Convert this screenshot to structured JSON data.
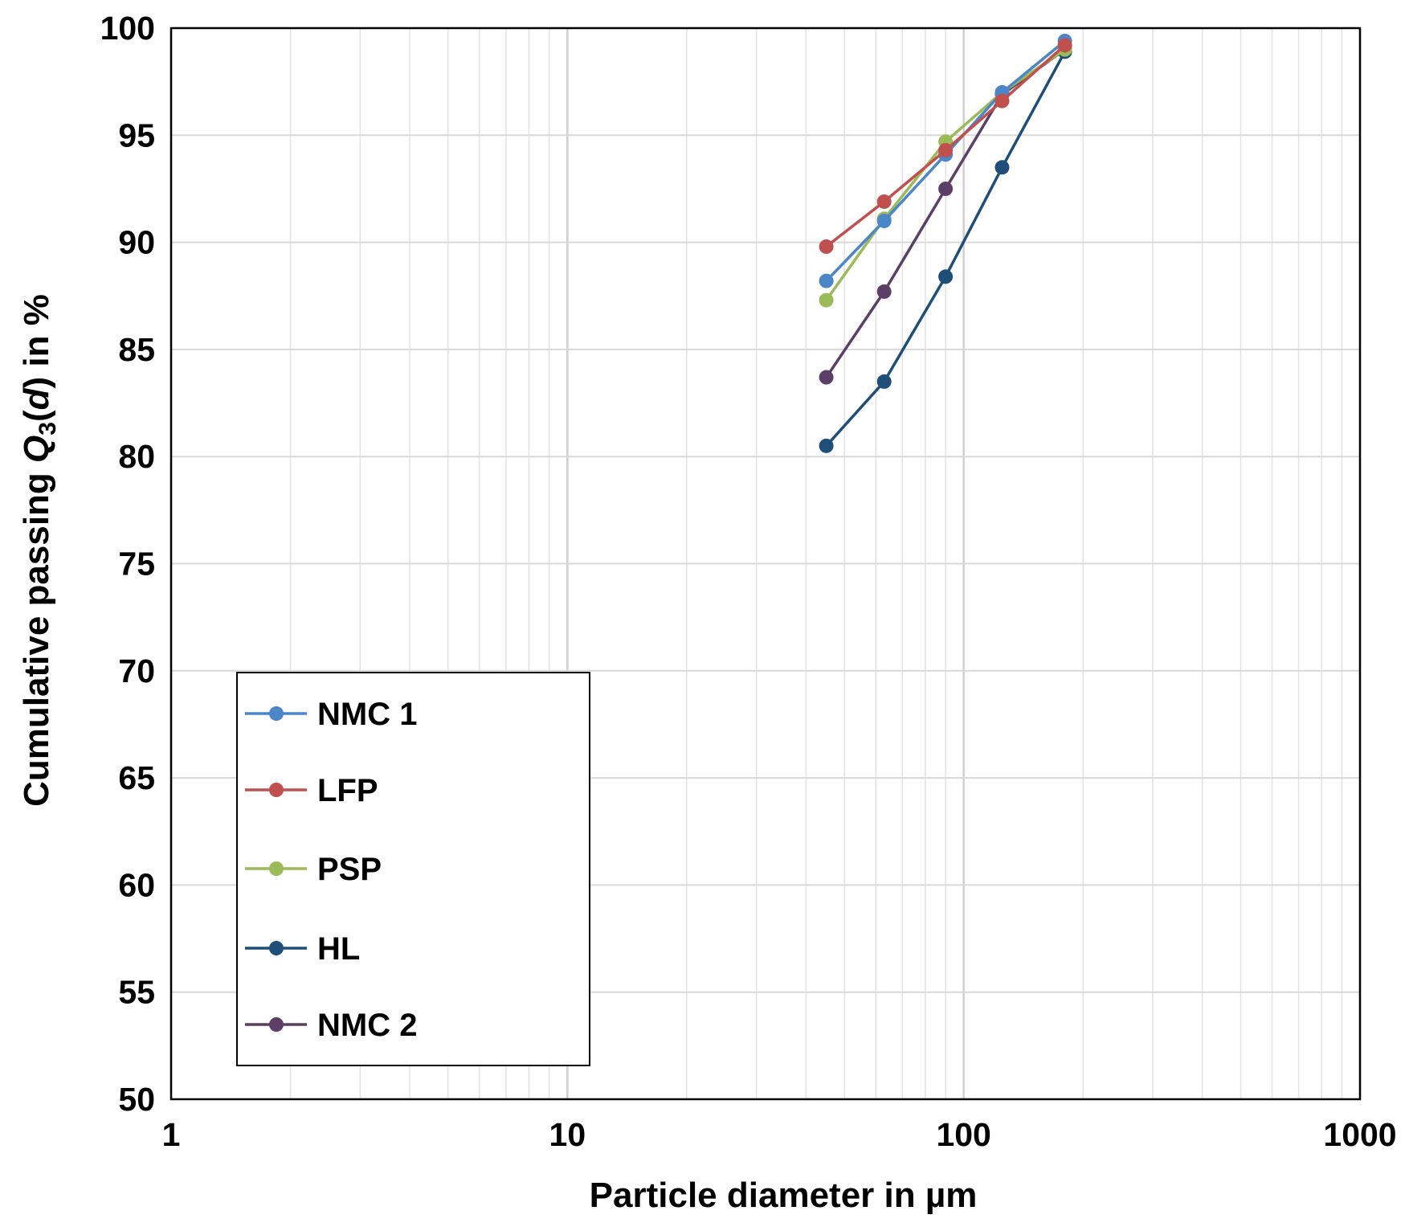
{
  "chart_data": {
    "type": "line",
    "xscale": "log",
    "xlabel": "Particle diameter in µm",
    "ylabel": {
      "prefix": "Cumulative passing ",
      "symbol": "Q",
      "subscript": "3",
      "open": "(",
      "var": "d",
      "close": ")",
      "suffix": " in %"
    },
    "xlim": [
      1,
      1000
    ],
    "ylim": [
      50,
      100
    ],
    "xticks": [
      1,
      10,
      100,
      1000
    ],
    "xtick_labels": [
      "1",
      "10",
      "100",
      "1000"
    ],
    "yticks": [
      50,
      55,
      60,
      65,
      70,
      75,
      80,
      85,
      90,
      95,
      100
    ],
    "ytick_labels": [
      "50",
      "55",
      "60",
      "65",
      "70",
      "75",
      "80",
      "85",
      "90",
      "95",
      "100"
    ],
    "grid": true,
    "legend_position": "lower-left",
    "x": [
      45,
      63,
      90,
      125,
      180
    ],
    "series": [
      {
        "name": "NMC 1",
        "color": "#4a86c8",
        "values": [
          88.2,
          91.0,
          94.1,
          97.0,
          99.4
        ]
      },
      {
        "name": "LFP",
        "color": "#c0504d",
        "values": [
          89.8,
          91.9,
          94.3,
          96.6,
          99.2
        ]
      },
      {
        "name": "PSP",
        "color": "#9bbb59",
        "values": [
          87.3,
          91.1,
          94.7,
          97.0,
          99.0
        ]
      },
      {
        "name": "HL",
        "color": "#1f4e79",
        "values": [
          80.5,
          83.5,
          88.4,
          93.5,
          98.9
        ]
      },
      {
        "name": "NMC 2",
        "color": "#5c3f66",
        "values": [
          83.7,
          87.7,
          92.5,
          96.9,
          99.0
        ]
      }
    ]
  }
}
